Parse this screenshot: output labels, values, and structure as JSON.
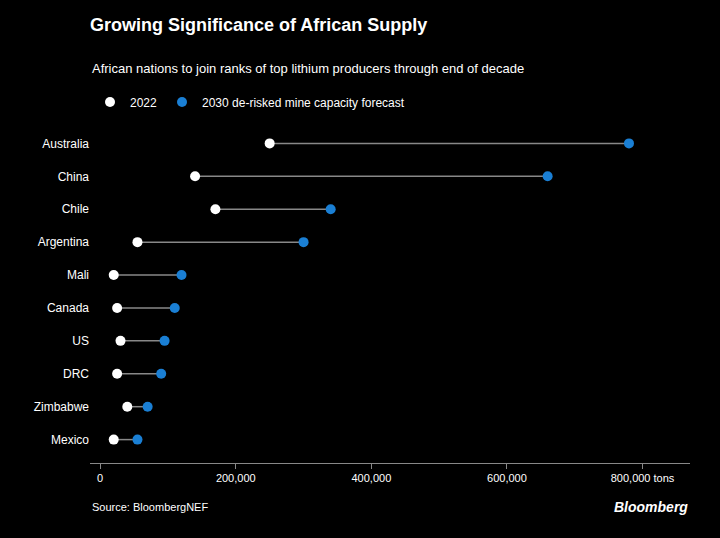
{
  "chart_data": {
    "type": "dumbbell",
    "title": "Growing Significance of African Supply",
    "subtitle": "African nations to join ranks of top lithium producers through end of decade",
    "annotations": [
      "Source: BloombergNEF",
      "Bloomberg"
    ],
    "categories": [
      "Australia",
      "China",
      "Chile",
      "Argentina",
      "Mali",
      "Canada",
      "US",
      "DRC",
      "Zimbabwe",
      "Mexico"
    ],
    "series": [
      {
        "name": "2022",
        "color": "#ffffff",
        "values": [
          250000,
          140000,
          170000,
          55000,
          20000,
          25000,
          30000,
          25000,
          40000,
          20000
        ]
      },
      {
        "name": "2030 de-risked mine capacity forecast",
        "color": "#1a7fd4",
        "values": [
          780000,
          660000,
          340000,
          300000,
          120000,
          110000,
          95000,
          90000,
          70000,
          55000
        ]
      }
    ],
    "orientation": "horizontal",
    "xlim": [
      -15000,
      870000
    ],
    "xticks": [
      0,
      {
        "value": 200000,
        "label": "200,000"
      },
      {
        "value": 400000,
        "label": "400,000"
      },
      {
        "value": 600000,
        "label": "600,000"
      },
      {
        "value": 800000,
        "label": "800,000 tons"
      }
    ],
    "grid": false,
    "legend": "top left"
  }
}
